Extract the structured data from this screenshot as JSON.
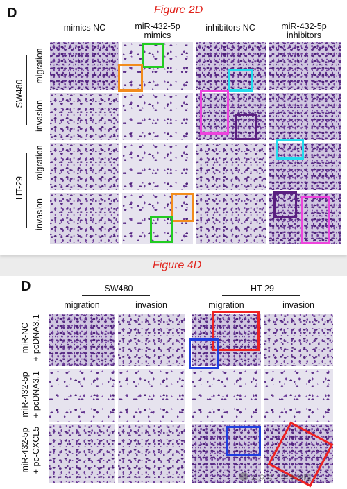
{
  "colors": {
    "caption_red": "#e0211a",
    "green": "#22cc22",
    "orange": "#f28c1c",
    "cyan": "#22ddee",
    "magenta": "#ee44dd",
    "purple": "#5a1f80",
    "red": "#ee2222",
    "blue": "#1f3fe0"
  },
  "figure_top": {
    "caption": "Figure 2D",
    "letter": "D",
    "columns": [
      "mimics NC",
      "miR-432-5p\nmimics",
      "inhibitors NC",
      "miR-432-5p\ninhibitors"
    ],
    "groups": [
      {
        "cell_line": "SW480",
        "rows": [
          "migration",
          "invasion"
        ]
      },
      {
        "cell_line": "HT-29",
        "rows": [
          "migration",
          "invasion"
        ]
      }
    ]
  },
  "figure_bottom": {
    "caption": "Figure 4D",
    "letter": "D",
    "groups": [
      {
        "cell_line": "SW480",
        "columns": [
          "migration",
          "invasion"
        ]
      },
      {
        "cell_line": "HT-29",
        "columns": [
          "migration",
          "invasion"
        ]
      }
    ],
    "rows": [
      {
        "line1": "miR-NC",
        "line2": "+ pcDNA3.1"
      },
      {
        "line1": "miR-432-5p",
        "line2": "+ pcDNA3.1"
      },
      {
        "line1": "miR-432-5p",
        "line2": "+ pc-CXCL5"
      }
    ]
  },
  "watermark": "公众号 · 学术深瞳"
}
